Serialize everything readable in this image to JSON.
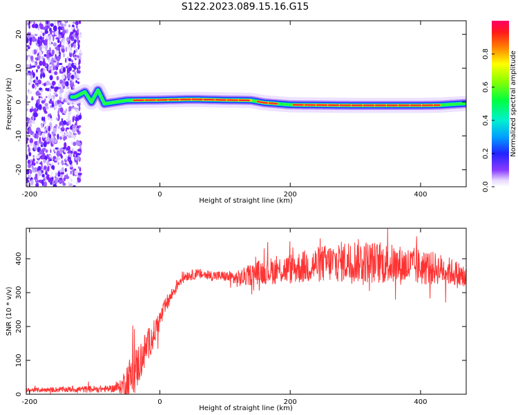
{
  "title": "S122.2023.089.15.16.G15",
  "chart_data": [
    {
      "type": "heatmap",
      "xlabel": "Height of straight line (km)",
      "ylabel": "Frequency (Hz)",
      "xlim": [
        -205,
        470
      ],
      "ylim": [
        -25,
        24
      ],
      "xticks": [
        -200,
        0,
        200,
        400
      ],
      "yticks": [
        -20,
        -10,
        0,
        10,
        20
      ],
      "colorbar": {
        "label": "Normalized spectral amplitude",
        "range": [
          0,
          1
        ],
        "ticks": [
          0.0,
          0.2,
          0.4,
          0.6,
          0.8
        ]
      },
      "ridge": [
        {
          "x": -130,
          "f": 1.5
        },
        {
          "x": -115,
          "f": 3
        },
        {
          "x": -105,
          "f": 0
        },
        {
          "x": -95,
          "f": 3.5
        },
        {
          "x": -85,
          "f": -0.5
        },
        {
          "x": -50,
          "f": 0.5
        },
        {
          "x": 0,
          "f": 0.6
        },
        {
          "x": 50,
          "f": 0.8
        },
        {
          "x": 100,
          "f": 0.6
        },
        {
          "x": 140,
          "f": 0.5
        },
        {
          "x": 160,
          "f": -0.2
        },
        {
          "x": 200,
          "f": -0.8
        },
        {
          "x": 300,
          "f": -1
        },
        {
          "x": 400,
          "f": -1
        },
        {
          "x": 430,
          "f": -0.9
        },
        {
          "x": 470,
          "f": -0.4
        }
      ],
      "noise_region": [
        -205,
        -130
      ]
    },
    {
      "type": "line",
      "xlabel": "Height of straight line (km)",
      "ylabel": "SNR (10 * v/v)",
      "xlim": [
        -205,
        470
      ],
      "ylim": [
        0,
        490
      ],
      "xticks": [
        -200,
        0,
        200,
        400
      ],
      "yticks": [
        0,
        100,
        200,
        300,
        400
      ],
      "series": [
        {
          "name": "SNR",
          "color": "#ff3333",
          "x": [
            -205,
            -150,
            -100,
            -75,
            -60,
            -50,
            -40,
            -30,
            -20,
            -10,
            0,
            10,
            20,
            30,
            40,
            60,
            80,
            100,
            120,
            150,
            200,
            250,
            300,
            350,
            400,
            430,
            450,
            470
          ],
          "mean": [
            12,
            14,
            15,
            16,
            22,
            40,
            60,
            100,
            140,
            175,
            220,
            265,
            300,
            335,
            350,
            355,
            350,
            348,
            340,
            360,
            370,
            385,
            395,
            385,
            375,
            370,
            360,
            340
          ],
          "spread": [
            6,
            8,
            10,
            10,
            20,
            60,
            70,
            60,
            50,
            40,
            30,
            25,
            20,
            18,
            15,
            15,
            15,
            15,
            25,
            35,
            45,
            55,
            65,
            60,
            55,
            45,
            40,
            40
          ]
        }
      ]
    }
  ]
}
